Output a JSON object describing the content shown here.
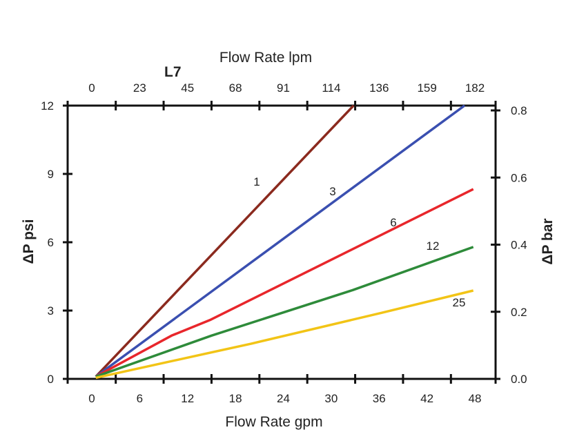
{
  "chart_data": {
    "type": "line",
    "title": "L7",
    "xlabel": "Flow Rate gpm",
    "x2label": "Flow Rate lpm",
    "ylabel": "ΔP psi",
    "y2label": "ΔP bar",
    "xlim": [
      0,
      48
    ],
    "ylim": [
      0,
      12
    ],
    "y2lim": [
      0,
      0.8
    ],
    "xticks": [
      "0",
      "6",
      "12",
      "18",
      "24",
      "30",
      "36",
      "42",
      "48"
    ],
    "x2ticks": [
      "0",
      "23",
      "45",
      "68",
      "91",
      "114",
      "136",
      "159",
      "182"
    ],
    "yticks": [
      "0",
      "3",
      "6",
      "9",
      "12"
    ],
    "y2ticks": [
      "0.0",
      "0.2",
      "0.4",
      "0.6",
      "0.8"
    ],
    "grid": false,
    "series": [
      {
        "name": "1",
        "color": "#8B2A1E",
        "x": [
          0.5,
          32.8
        ],
        "y": [
          0.1,
          12
        ]
      },
      {
        "name": "3",
        "color": "#3A4FB0",
        "x": [
          0.5,
          46.7
        ],
        "y": [
          0.1,
          12
        ]
      },
      {
        "name": "6",
        "color": "#E8262B",
        "x": [
          0.5,
          10,
          14.9,
          47.8
        ],
        "y": [
          0.1,
          1.9,
          2.6,
          8.33
        ]
      },
      {
        "name": "12",
        "color": "#2E8B3A",
        "x": [
          0.5,
          15,
          32.7,
          47.8
        ],
        "y": [
          0.1,
          1.9,
          3.9,
          5.79
        ]
      },
      {
        "name": "25",
        "color": "#F2C416",
        "x": [
          0.5,
          20,
          36.3,
          47.8
        ],
        "y": [
          0.05,
          1.55,
          2.9,
          3.88
        ]
      }
    ]
  }
}
